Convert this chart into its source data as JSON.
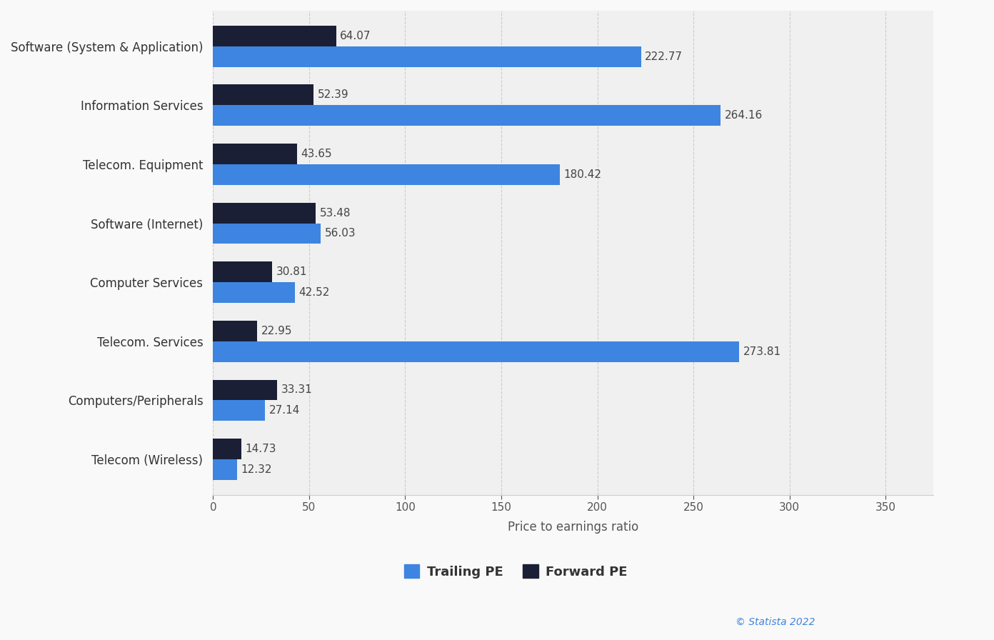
{
  "categories": [
    "Software (System & Application)",
    "Information Services",
    "Telecom. Equipment",
    "Software (Internet)",
    "Computer Services",
    "Telecom. Services",
    "Computers/Peripherals",
    "Telecom (Wireless)"
  ],
  "trailing_pe": [
    222.77,
    264.16,
    180.42,
    56.03,
    42.52,
    273.81,
    27.14,
    12.32
  ],
  "forward_pe": [
    64.07,
    52.39,
    43.65,
    53.48,
    30.81,
    22.95,
    33.31,
    14.73
  ],
  "trailing_color": "#3d85e0",
  "forward_color": "#1a1f36",
  "xlabel": "Price to earnings ratio",
  "xlim": [
    0,
    375
  ],
  "xticks": [
    0,
    50,
    100,
    150,
    200,
    250,
    300,
    350
  ],
  "background_color": "#f9f9f9",
  "plot_bg_color": "#f0f0f0",
  "grid_color": "#cccccc",
  "legend_trailing": "Trailing PE",
  "legend_forward": "Forward PE",
  "bar_height": 0.35,
  "value_fontsize": 11,
  "label_fontsize": 12,
  "tick_fontsize": 11,
  "legend_fontsize": 13
}
